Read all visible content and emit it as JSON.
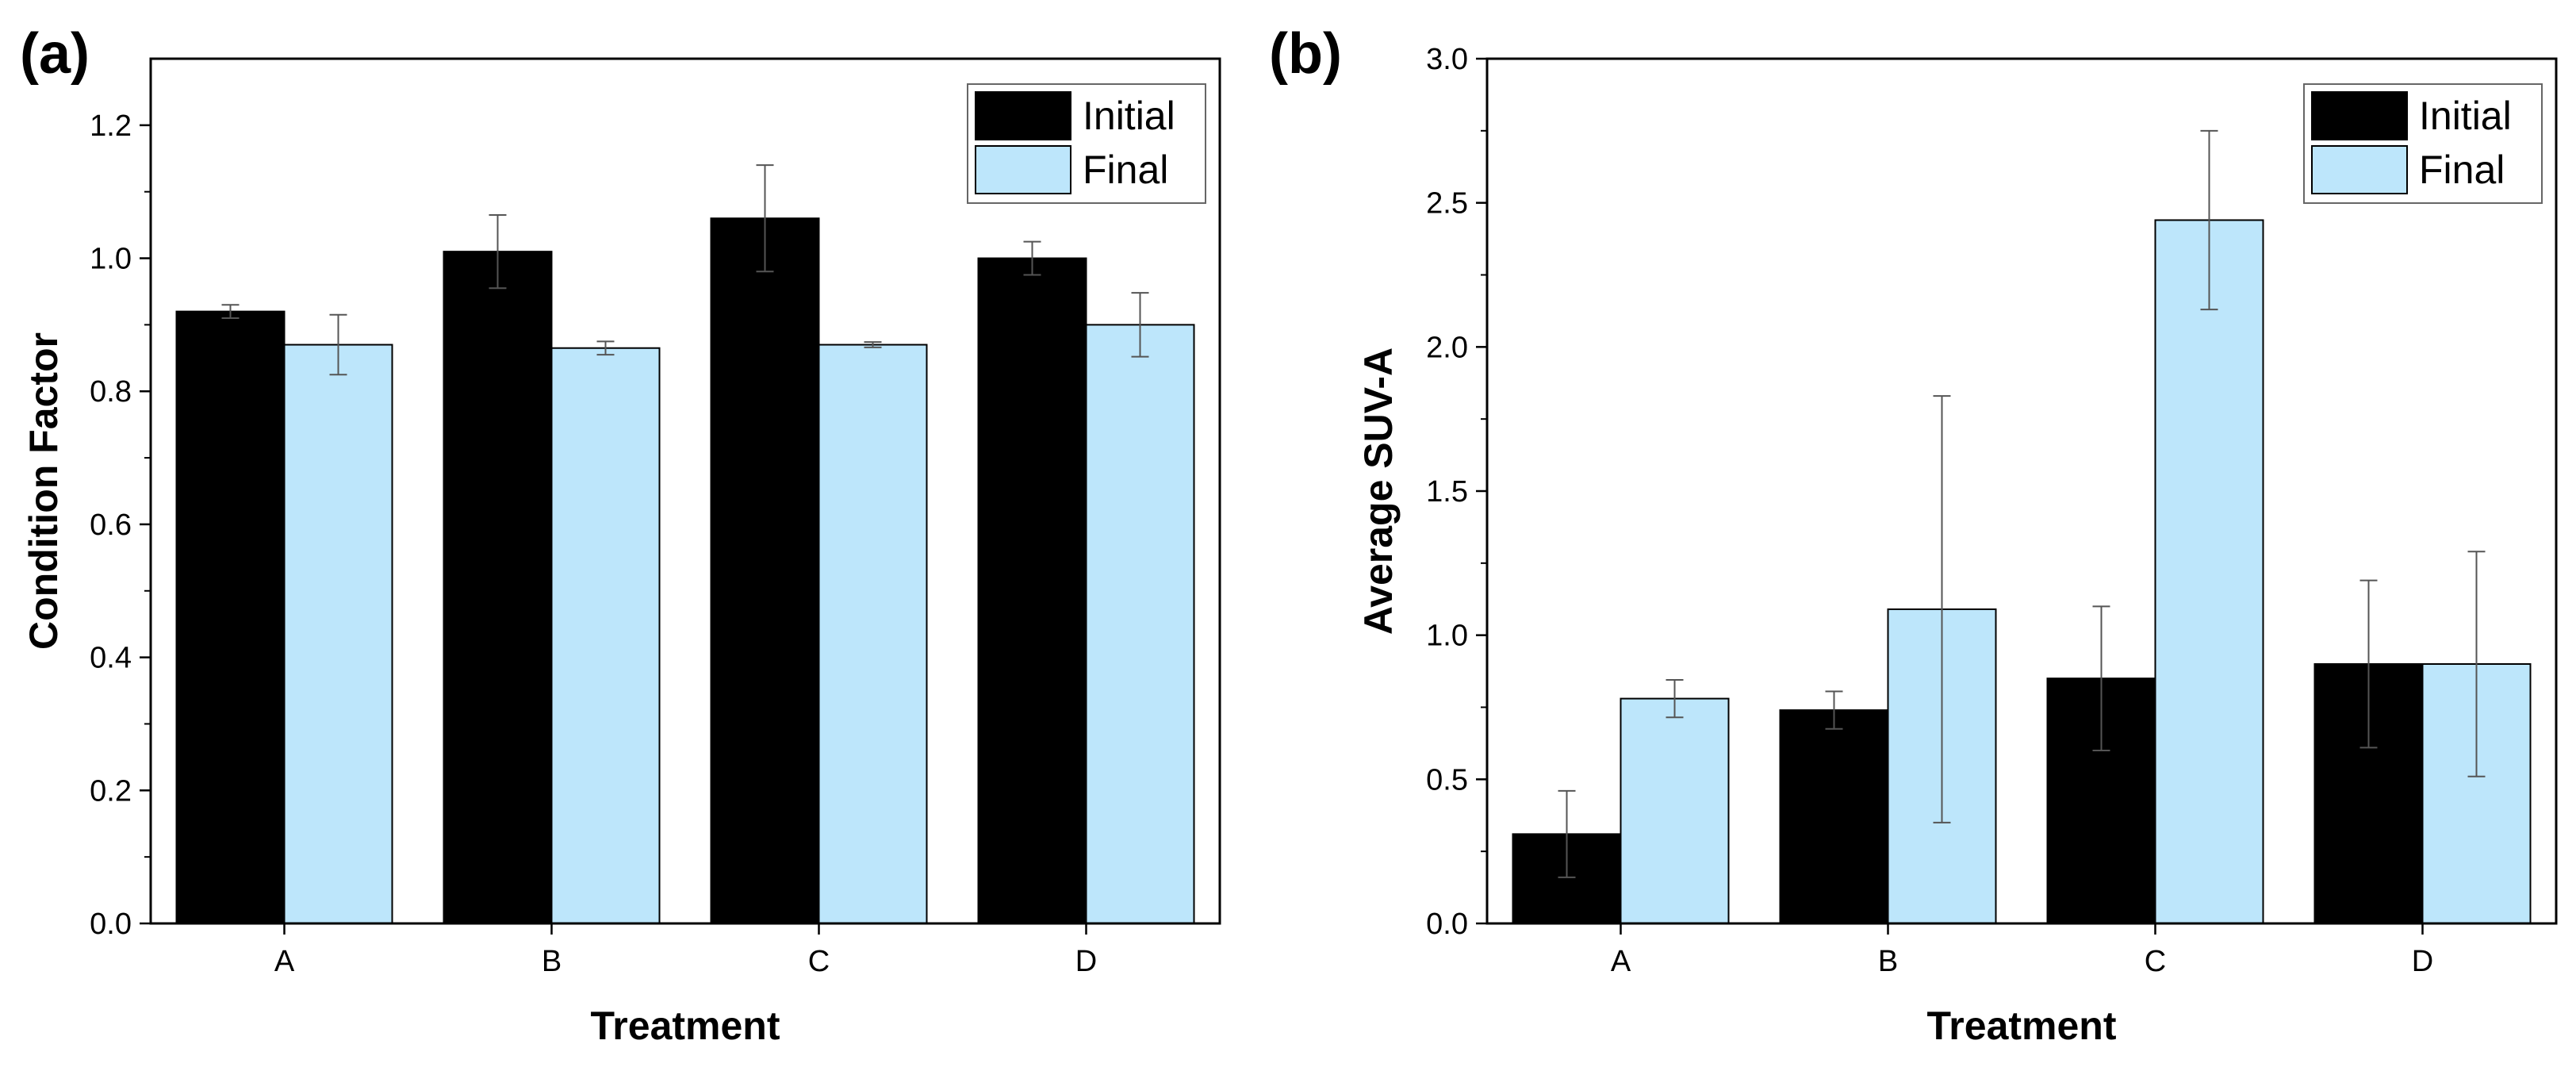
{
  "chart_data": [
    {
      "type": "bar",
      "panel_label": "(a)",
      "xlabel": "Treatment",
      "ylabel": "Condition Factor",
      "categories": [
        "A",
        "B",
        "C",
        "D"
      ],
      "ylim": [
        0,
        1.3
      ],
      "yticks": [
        0.0,
        0.2,
        0.4,
        0.6,
        0.8,
        1.0,
        1.2
      ],
      "ytick_labels": [
        "0.0",
        "0.2",
        "0.4",
        "0.6",
        "0.8",
        "1.0",
        "1.2"
      ],
      "legend_position": "top-right",
      "series": [
        {
          "name": "Initial",
          "color": "#000000",
          "values": [
            0.92,
            1.01,
            1.06,
            1.0
          ],
          "errors": [
            0.01,
            0.055,
            0.08,
            0.025
          ]
        },
        {
          "name": "Final",
          "color": "#bde6fb",
          "values": [
            0.87,
            0.865,
            0.87,
            0.9
          ],
          "errors": [
            0.045,
            0.01,
            0.004,
            0.048
          ]
        }
      ]
    },
    {
      "type": "bar",
      "panel_label": "(b)",
      "xlabel": "Treatment",
      "ylabel": "Average SUV-A",
      "categories": [
        "A",
        "B",
        "C",
        "D"
      ],
      "ylim": [
        0,
        3.0
      ],
      "yticks": [
        0.0,
        0.5,
        1.0,
        1.5,
        2.0,
        2.5,
        3.0
      ],
      "ytick_labels": [
        "0.0",
        "0.5",
        "1.0",
        "1.5",
        "2.0",
        "2.5",
        "3.0"
      ],
      "legend_position": "top-right",
      "series": [
        {
          "name": "Initial",
          "color": "#000000",
          "values": [
            0.31,
            0.74,
            0.85,
            0.9
          ],
          "errors": [
            0.15,
            0.065,
            0.25,
            0.29
          ]
        },
        {
          "name": "Final",
          "color": "#bde6fb",
          "values": [
            0.78,
            1.09,
            2.44,
            0.9
          ],
          "errors": [
            0.065,
            0.74,
            0.31,
            0.39
          ]
        }
      ]
    }
  ]
}
